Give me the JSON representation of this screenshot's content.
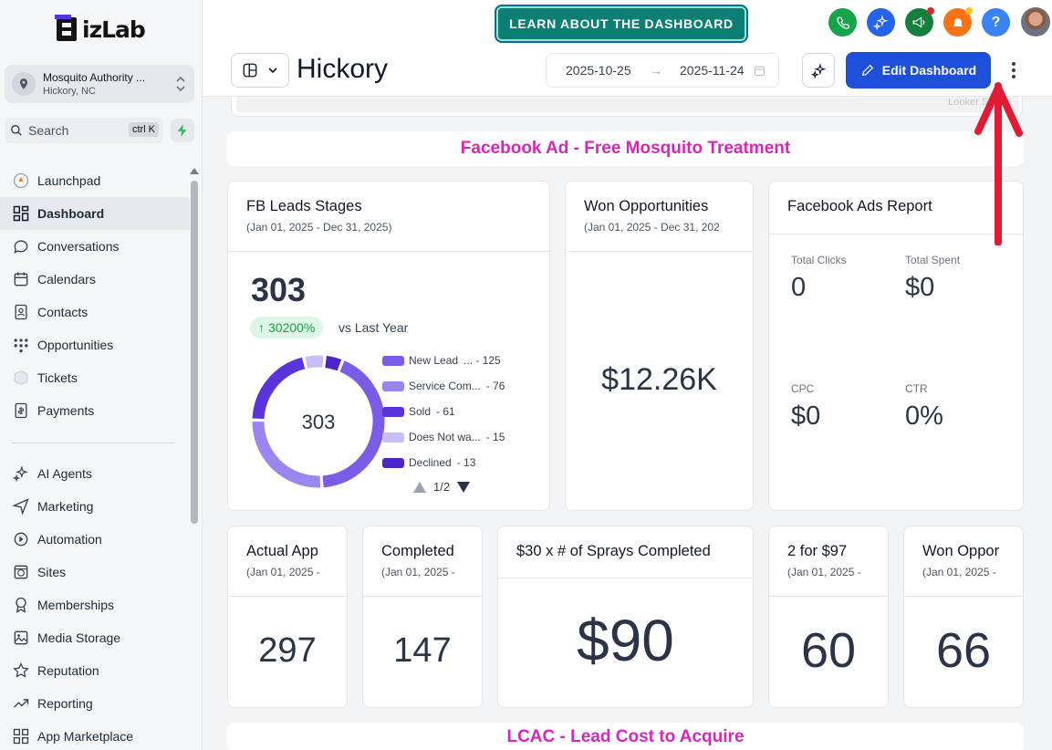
{
  "brand": {
    "logo_text": "izLab"
  },
  "account": {
    "name": "Mosquito Authority ...",
    "location": "Hickory, NC"
  },
  "search": {
    "label": "Search",
    "shortcut": "ctrl K"
  },
  "nav": {
    "primary": [
      {
        "label": "Launchpad",
        "icon": "rocket-icon",
        "active": false
      },
      {
        "label": "Dashboard",
        "icon": "grid-icon",
        "active": true
      },
      {
        "label": "Conversations",
        "icon": "chat-icon",
        "active": false
      },
      {
        "label": "Calendars",
        "icon": "calendar-icon",
        "active": false
      },
      {
        "label": "Contacts",
        "icon": "contacts-icon",
        "active": false
      },
      {
        "label": "Opportunities",
        "icon": "opportunities-icon",
        "active": false
      },
      {
        "label": "Tickets",
        "icon": "ticket-icon",
        "active": false
      },
      {
        "label": "Payments",
        "icon": "payments-icon",
        "active": false
      }
    ],
    "secondary": [
      {
        "label": "AI Agents",
        "icon": "sparkle-icon"
      },
      {
        "label": "Marketing",
        "icon": "send-icon"
      },
      {
        "label": "Automation",
        "icon": "automation-icon"
      },
      {
        "label": "Sites",
        "icon": "globe-icon"
      },
      {
        "label": "Memberships",
        "icon": "award-icon"
      },
      {
        "label": "Media Storage",
        "icon": "image-icon"
      },
      {
        "label": "Reputation",
        "icon": "star-icon"
      },
      {
        "label": "Reporting",
        "icon": "trend-icon"
      },
      {
        "label": "App Marketplace",
        "icon": "marketplace-icon"
      }
    ]
  },
  "topbar": {
    "learn_label": "LEARN ABOUT THE DASHBOARD",
    "colors": {
      "phone": "#16a34a",
      "ai": "#2563eb",
      "announce": "#15803d",
      "bell": "#f97316",
      "help": "#3b82f6"
    }
  },
  "header": {
    "title": "Hickory",
    "date_start": "2025-10-25",
    "date_end": "2025-11-24",
    "edit_label": "Edit Dashboard"
  },
  "looker_label": "Looker Studio",
  "sections": {
    "facebook": "Facebook Ad - Free Mosquito Treatment",
    "lcac": "LCAC - Lead Cost to Acquire"
  },
  "fb_leads": {
    "title": "FB Leads Stages",
    "range": "(Jan 01, 2025 - Dec 31, 2025)",
    "total": "303",
    "change": "30200%",
    "vs_label": "vs Last Year",
    "donut_center": "303",
    "legend": [
      {
        "label": "New Lead",
        "value": "... - 125",
        "color": "#7b5ce6"
      },
      {
        "label": "Service Com...",
        "value": "- 76",
        "color": "#9b85ee"
      },
      {
        "label": "Sold",
        "value": "- 61",
        "color": "#5b34d9"
      },
      {
        "label": "Does Not wa...",
        "value": "- 15",
        "color": "#c9bdf6"
      },
      {
        "label": "Declined",
        "value": "- 13",
        "color": "#4c25c9"
      }
    ],
    "pager": "1/2"
  },
  "won_opps": {
    "title": "Won Opportunities",
    "range": "(Jan 01, 2025 - Dec 31, 202",
    "value": "$12.26K"
  },
  "fb_ads": {
    "title": "Facebook Ads Report",
    "total_clicks_label": "Total Clicks",
    "total_clicks": "0",
    "total_spent_label": "Total Spent",
    "total_spent": "$0",
    "cpc_label": "CPC",
    "cpc": "$0",
    "ctr_label": "CTR",
    "ctr": "0%"
  },
  "kpis": [
    {
      "title": "Actual App",
      "range": "(Jan 01, 2025 -",
      "value": "297"
    },
    {
      "title": "Completed",
      "range": "(Jan 01, 2025 -",
      "value": "147"
    },
    {
      "title": "$30 x # of Sprays Completed",
      "range": "",
      "value": "$90"
    },
    {
      "title": "2 for $97",
      "range": "(Jan 01, 2025 -",
      "value": "60"
    },
    {
      "title": "Won Oppor",
      "range": "(Jan 01, 2025 -",
      "value": "66"
    }
  ],
  "chart_data": {
    "type": "pie",
    "title": "FB Leads Stages",
    "categories": [
      "New Lead",
      "Service Com...",
      "Sold",
      "Does Not wa...",
      "Declined"
    ],
    "values": [
      125,
      76,
      61,
      15,
      13
    ],
    "total": 303,
    "legend": "right"
  }
}
